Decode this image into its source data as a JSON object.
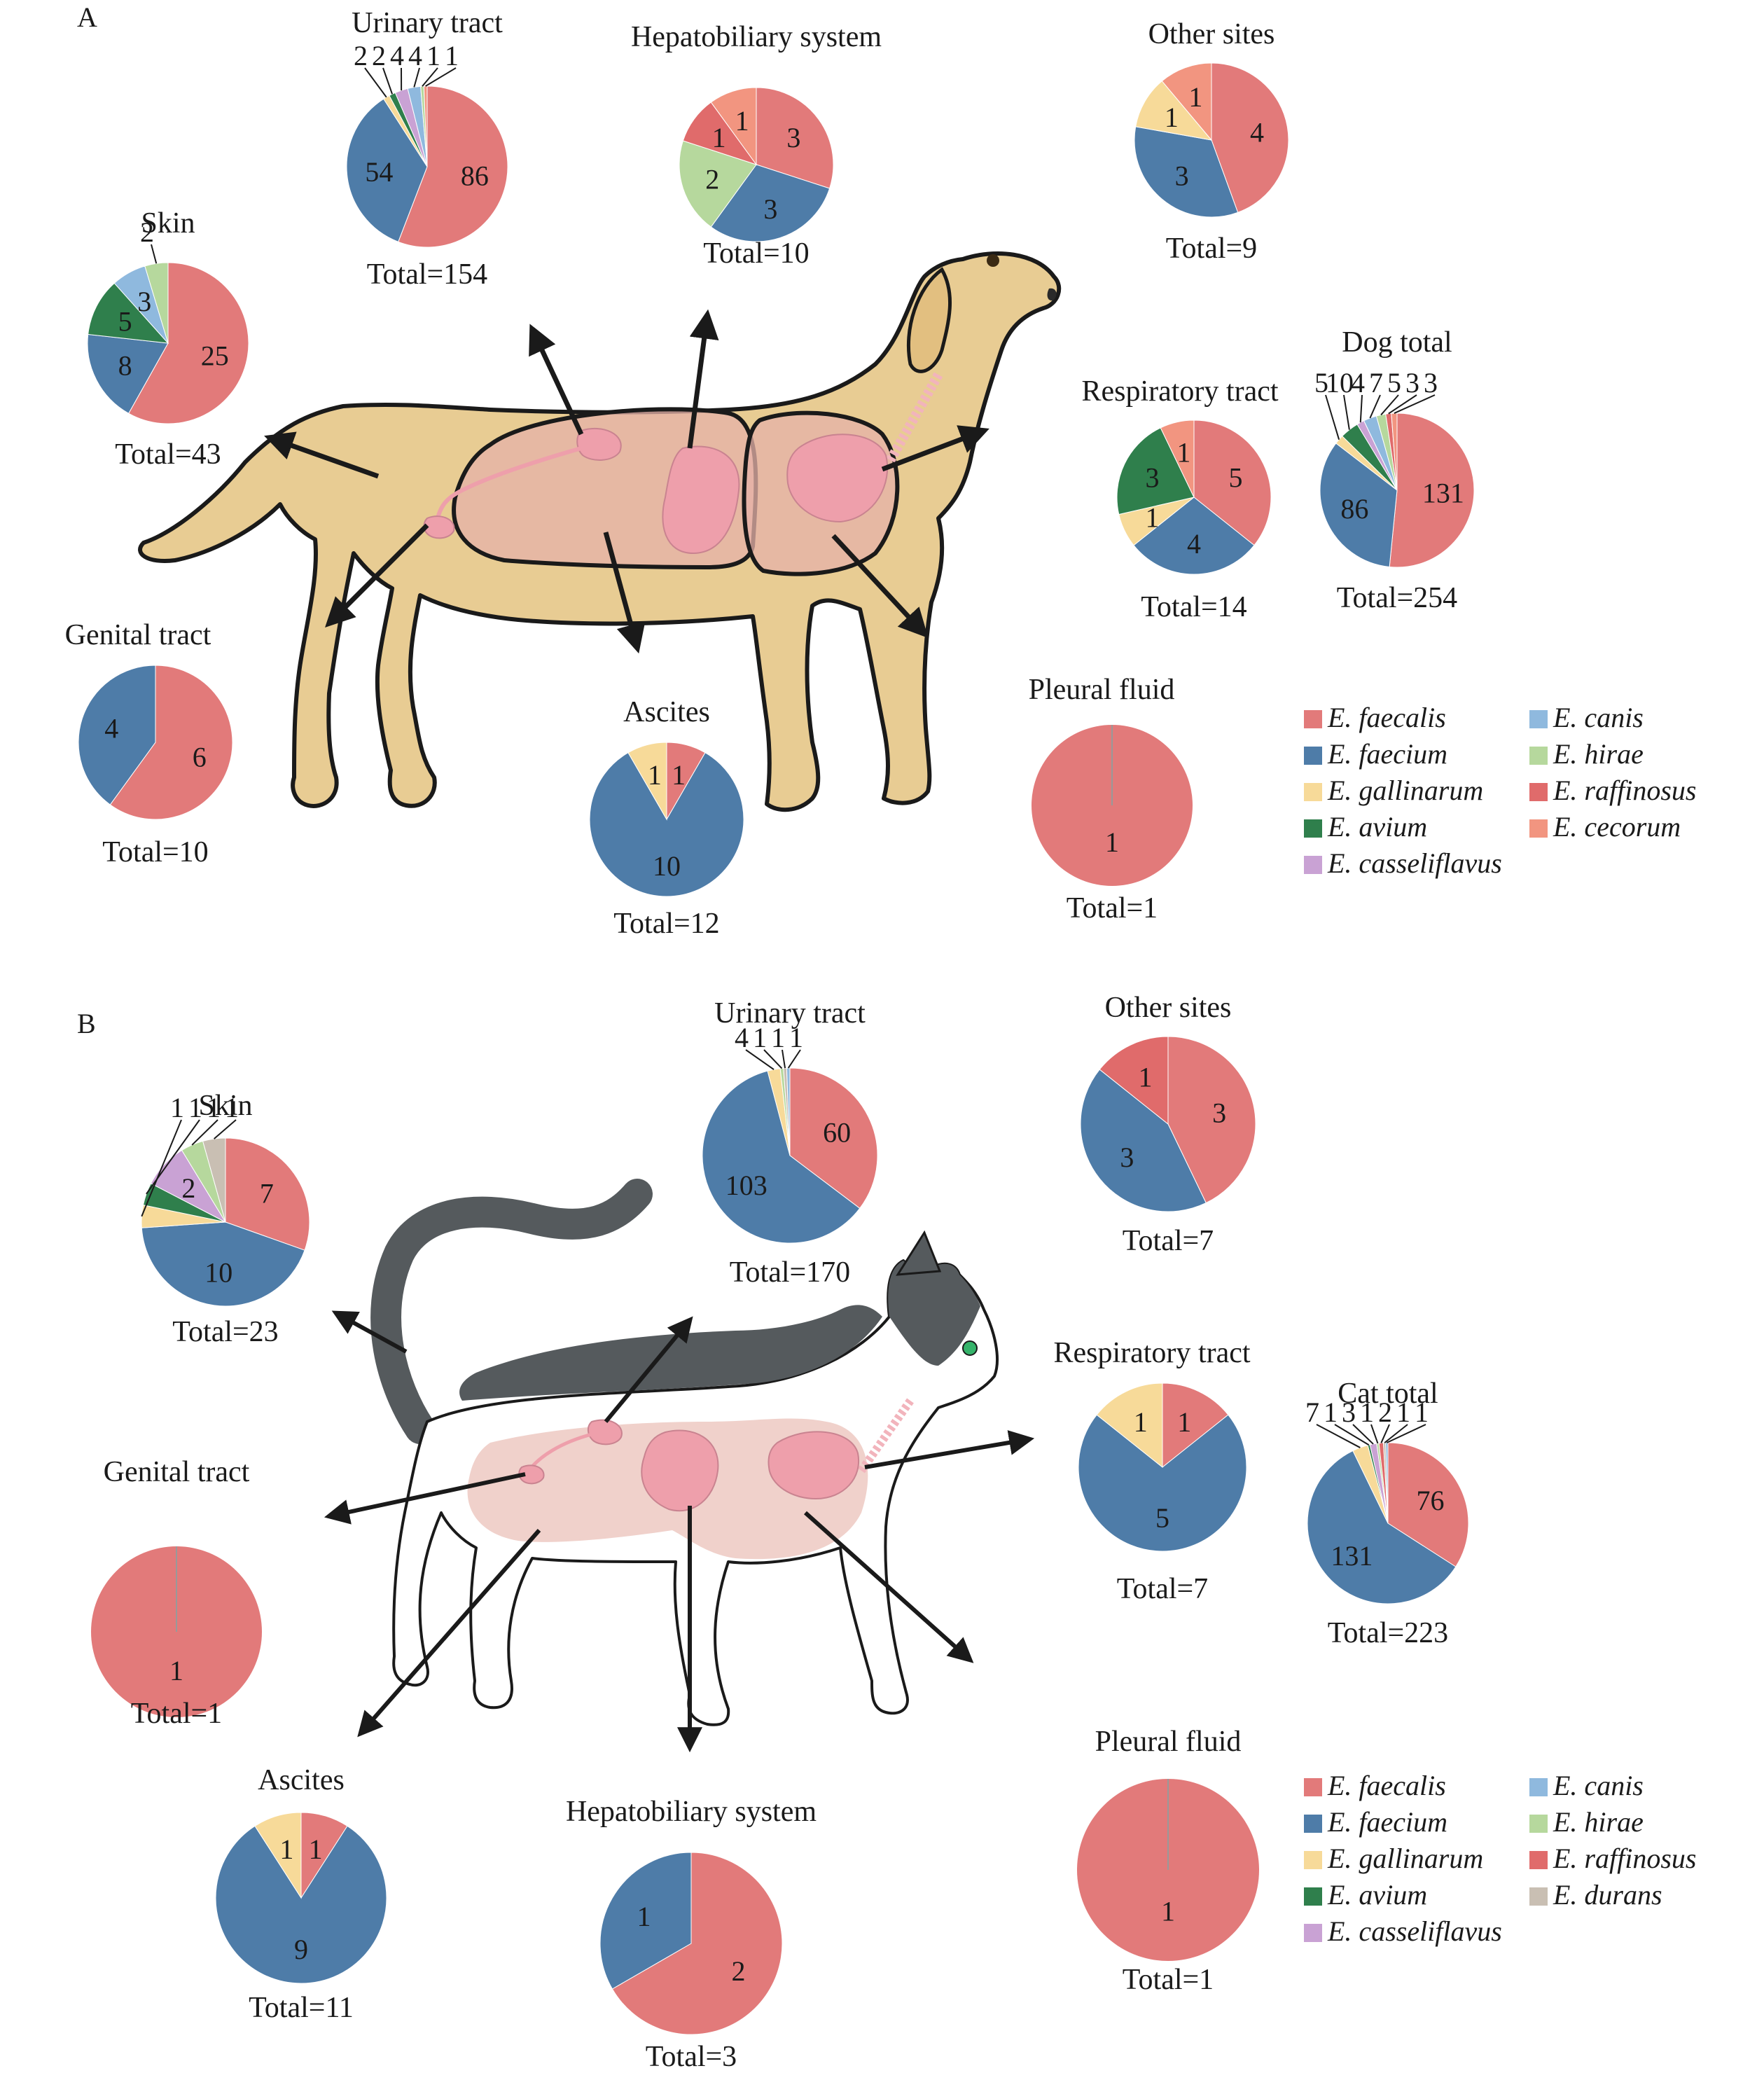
{
  "colors": {
    "E. faecalis": "#e27a7a",
    "E. faecium": "#4e7ca8",
    "E. gallinarum": "#f7da99",
    "E. avium": "#2f7f4c",
    "E. casseliflavus": "#c9a2d4",
    "E. canis": "#8fb9de",
    "E. hirae": "#b6d89d",
    "E. raffinosus": "#e06b6b",
    "E. cecorum": "#f29580",
    "E. durans": "#c9bfb3"
  },
  "panels": [
    {
      "label": "A",
      "animal": "dog"
    },
    {
      "label": "B",
      "animal": "cat"
    }
  ],
  "legends": [
    {
      "panel": "A",
      "items": [
        "E. faecalis",
        "E. faecium",
        "E. gallinarum",
        "E. avium",
        "E. casseliflavus",
        "E. canis",
        "E. hirae",
        "E. raffinosus",
        "E. cecorum"
      ]
    },
    {
      "panel": "B",
      "items": [
        "E. faecalis",
        "E. faecium",
        "E. gallinarum",
        "E. avium",
        "E. casseliflavus",
        "E. canis",
        "E. hirae",
        "E. raffinosus",
        "E. durans"
      ]
    }
  ],
  "chart_data": [
    {
      "type": "pie",
      "panel": "A",
      "title": "Urinary tract",
      "total": "Total=154",
      "slices": [
        {
          "species": "E. faecalis",
          "value": 86
        },
        {
          "species": "E. faecium",
          "value": 54
        },
        {
          "species": "E. gallinarum",
          "value": 2
        },
        {
          "species": "E. avium",
          "value": 2
        },
        {
          "species": "E. casseliflavus",
          "value": 4
        },
        {
          "species": "E. canis",
          "value": 4
        },
        {
          "species": "E. hirae",
          "value": 1
        },
        {
          "species": "E. cecorum",
          "value": 1
        }
      ]
    },
    {
      "type": "pie",
      "panel": "A",
      "title": "Hepatobiliary system",
      "total": "Total=10",
      "slices": [
        {
          "species": "E. faecalis",
          "value": 3
        },
        {
          "species": "E. faecium",
          "value": 3
        },
        {
          "species": "E. hirae",
          "value": 2
        },
        {
          "species": "E. raffinosus",
          "value": 1
        },
        {
          "species": "E. cecorum",
          "value": 1
        }
      ]
    },
    {
      "type": "pie",
      "panel": "A",
      "title": "Other sites",
      "total": "Total=9",
      "slices": [
        {
          "species": "E. faecalis",
          "value": 4
        },
        {
          "species": "E. faecium",
          "value": 3
        },
        {
          "species": "E. gallinarum",
          "value": 1
        },
        {
          "species": "E. cecorum",
          "value": 1
        }
      ]
    },
    {
      "type": "pie",
      "panel": "A",
      "title": "Skin",
      "total": "Total=43",
      "slices": [
        {
          "species": "E. faecalis",
          "value": 25
        },
        {
          "species": "E. faecium",
          "value": 8
        },
        {
          "species": "E. avium",
          "value": 5
        },
        {
          "species": "E. canis",
          "value": 3
        },
        {
          "species": "E. hirae",
          "value": 2
        }
      ]
    },
    {
      "type": "pie",
      "panel": "A",
      "title": "Respiratory tract",
      "total": "Total=14",
      "slices": [
        {
          "species": "E. faecalis",
          "value": 5
        },
        {
          "species": "E. faecium",
          "value": 4
        },
        {
          "species": "E. gallinarum",
          "value": 1
        },
        {
          "species": "E. avium",
          "value": 3
        },
        {
          "species": "E. cecorum",
          "value": 1
        }
      ]
    },
    {
      "type": "pie",
      "panel": "A",
      "title": "Dog total",
      "total": "Total=254",
      "slices": [
        {
          "species": "E. faecalis",
          "value": 131
        },
        {
          "species": "E. faecium",
          "value": 86
        },
        {
          "species": "E. gallinarum",
          "value": 5
        },
        {
          "species": "E. avium",
          "value": 10
        },
        {
          "species": "E. casseliflavus",
          "value": 4
        },
        {
          "species": "E. canis",
          "value": 7
        },
        {
          "species": "E. hirae",
          "value": 5
        },
        {
          "species": "E. raffinosus",
          "value": 3
        },
        {
          "species": "E. cecorum",
          "value": 3
        }
      ]
    },
    {
      "type": "pie",
      "panel": "A",
      "title": "Genital tract",
      "total": "Total=10",
      "slices": [
        {
          "species": "E. faecalis",
          "value": 6
        },
        {
          "species": "E. faecium",
          "value": 4
        }
      ]
    },
    {
      "type": "pie",
      "panel": "A",
      "title": "Ascites",
      "total": "Total=12",
      "slices": [
        {
          "species": "E. faecalis",
          "value": 1
        },
        {
          "species": "E. faecium",
          "value": 10
        },
        {
          "species": "E. gallinarum",
          "value": 1
        }
      ]
    },
    {
      "type": "pie",
      "panel": "A",
      "title": "Pleural fluid",
      "total": "Total=1",
      "slices": [
        {
          "species": "E. faecalis",
          "value": 1
        }
      ]
    },
    {
      "type": "pie",
      "panel": "B",
      "title": "Urinary tract",
      "total": "Total=170",
      "slices": [
        {
          "species": "E. faecalis",
          "value": 60
        },
        {
          "species": "E. faecium",
          "value": 103
        },
        {
          "species": "E. gallinarum",
          "value": 4
        },
        {
          "species": "E. hirae",
          "value": 1
        },
        {
          "species": "E. durans",
          "value": 1
        },
        {
          "species": "E. canis",
          "value": 1
        }
      ]
    },
    {
      "type": "pie",
      "panel": "B",
      "title": "Other sites",
      "total": "Total=7",
      "slices": [
        {
          "species": "E. faecalis",
          "value": 3
        },
        {
          "species": "E. faecium",
          "value": 3
        },
        {
          "species": "E. raffinosus",
          "value": 1
        }
      ]
    },
    {
      "type": "pie",
      "panel": "B",
      "title": "Skin",
      "total": "Total=23",
      "slices": [
        {
          "species": "E. faecalis",
          "value": 7
        },
        {
          "species": "E. faecium",
          "value": 10
        },
        {
          "species": "E. gallinarum",
          "value": 1
        },
        {
          "species": "E. avium",
          "value": 1
        },
        {
          "species": "E. casseliflavus",
          "value": 2
        },
        {
          "species": "E. hirae",
          "value": 1
        },
        {
          "species": "E. durans",
          "value": 1
        }
      ]
    },
    {
      "type": "pie",
      "panel": "B",
      "title": "Genital tract",
      "total": "Total=1",
      "slices": [
        {
          "species": "E. faecalis",
          "value": 1
        }
      ]
    },
    {
      "type": "pie",
      "panel": "B",
      "title": "Respiratory tract",
      "total": "Total=7",
      "slices": [
        {
          "species": "E. faecalis",
          "value": 1
        },
        {
          "species": "E. faecium",
          "value": 5
        },
        {
          "species": "E. gallinarum",
          "value": 1
        }
      ]
    },
    {
      "type": "pie",
      "panel": "B",
      "title": "Cat total",
      "total": "Total=223",
      "slices": [
        {
          "species": "E. faecalis",
          "value": 76
        },
        {
          "species": "E. faecium",
          "value": 131
        },
        {
          "species": "E. gallinarum",
          "value": 7
        },
        {
          "species": "E. avium",
          "value": 1
        },
        {
          "species": "E. casseliflavus",
          "value": 3
        },
        {
          "species": "E. hirae",
          "value": 1
        },
        {
          "species": "E. raffinosus",
          "value": 2
        },
        {
          "species": "E. durans",
          "value": 1
        },
        {
          "species": "E. canis",
          "value": 1
        }
      ]
    },
    {
      "type": "pie",
      "panel": "B",
      "title": "Ascites",
      "total": "Total=11",
      "slices": [
        {
          "species": "E. faecalis",
          "value": 1
        },
        {
          "species": "E. faecium",
          "value": 9
        },
        {
          "species": "E. gallinarum",
          "value": 1
        }
      ]
    },
    {
      "type": "pie",
      "panel": "B",
      "title": "Hepatobiliary system",
      "total": "Total=3",
      "slices": [
        {
          "species": "E. faecalis",
          "value": 2
        },
        {
          "species": "E. faecium",
          "value": 1
        }
      ]
    },
    {
      "type": "pie",
      "panel": "B",
      "title": "Pleural fluid",
      "total": "Total=1",
      "slices": [
        {
          "species": "E. faecalis",
          "value": 1
        }
      ]
    }
  ]
}
